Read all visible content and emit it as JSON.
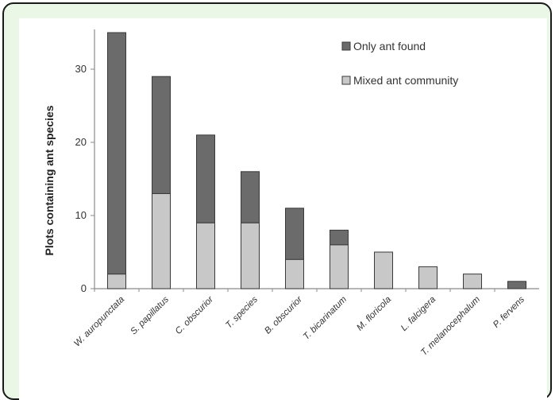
{
  "chart_data": {
    "type": "bar",
    "stacked": true,
    "title": "",
    "xlabel": "",
    "ylabel": "Plots containing ant species",
    "ylim": [
      0,
      35
    ],
    "yticks": [
      0,
      10,
      20,
      30
    ],
    "categories": [
      "W. auropunctata",
      "S. papillatus",
      "C. obscurior",
      "T. species",
      "B. obscurior",
      "T. bicarinatum",
      "M. floricola",
      "L. falcigera",
      "T. melanocephalum",
      "P. fervens"
    ],
    "series": [
      {
        "name": "Mixed ant community",
        "color": "#c8c8c8",
        "values": [
          2,
          13,
          9,
          9,
          4,
          6,
          5,
          3,
          2,
          0
        ]
      },
      {
        "name": "Only ant found",
        "color": "#6b6b6b",
        "values": [
          33,
          16,
          12,
          7,
          7,
          2,
          0,
          0,
          0,
          1
        ]
      }
    ],
    "legend": {
      "position": "top-right",
      "entries": [
        "Only ant found",
        "Mixed ant community"
      ]
    },
    "grid": false
  }
}
